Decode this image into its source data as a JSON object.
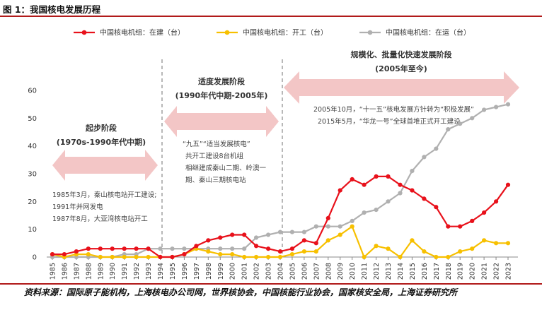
{
  "figure": {
    "title": "图 1：我国核电发展历程",
    "source": "资料来源：国际原子能机构，上海核电办公司网，世界核协会，中国核能行业协会，国家核安全局，上海证券研究所"
  },
  "stages": [
    {
      "name": "起步阶段",
      "period": "(1970s-1990年代中期)"
    },
    {
      "name": "适度发展阶段",
      "period": "(1990年代中期-2005年)"
    },
    {
      "name": "规模化、批量化快速发展阶段",
      "period": "(2005年至今)"
    }
  ],
  "annotations": {
    "stage1": [
      "1985年3月，秦山核电站开工建设;",
      "1991年并网发电",
      "1987年8月，大亚湾核电站开工"
    ],
    "stage2": [
      "“九五”“适当发展核电”",
      "共开工建设8台机组",
      "相继建成秦山二期、岭澳一",
      "期、秦山三期核电站"
    ],
    "stage3": [
      "2005年10月，“十一五”核电发展方针转为“积极发展”",
      "2015年5月，“华龙一号”全球首堆正式开工建设"
    ]
  },
  "chart_data": {
    "type": "line",
    "title": "",
    "xlabel": "",
    "ylabel": "",
    "ylim": [
      0,
      60
    ],
    "yticks": [
      0,
      10,
      20,
      30,
      40,
      50,
      60
    ],
    "x": [
      "1985",
      "1986",
      "1987",
      "1988",
      "1989",
      "1990",
      "1991",
      "1992",
      "1993",
      "1994",
      "1995",
      "1996",
      "1997",
      "1998",
      "1999",
      "2000",
      "2001",
      "2002",
      "2003",
      "2004",
      "2005",
      "2006",
      "2007",
      "2008",
      "2009",
      "2010",
      "2011",
      "2012",
      "2013",
      "2014",
      "2015",
      "2016",
      "2017",
      "2018",
      "2019",
      "2020",
      "2021",
      "2022",
      "2023"
    ],
    "legend_position": "top",
    "grid": false,
    "series": [
      {
        "name": "中国核电机组：在建（台）",
        "color": "#e8111b",
        "values": [
          1,
          1,
          2,
          3,
          3,
          3,
          3,
          3,
          3,
          0,
          0,
          1,
          4,
          6,
          7,
          8,
          8,
          4,
          3,
          2,
          3,
          6,
          5,
          14,
          24,
          28,
          26,
          29,
          29,
          26,
          24,
          21,
          18,
          11,
          11,
          13,
          16,
          20,
          26
        ]
      },
      {
        "name": "中国核电机组：开工（台）",
        "color": "#f7c000",
        "values": [
          1,
          0,
          1,
          1,
          0,
          0,
          0,
          0,
          0,
          0,
          0,
          1,
          3,
          2,
          1,
          1,
          0,
          0,
          0,
          0,
          1,
          2,
          2,
          6,
          8,
          11,
          0,
          4,
          3,
          0,
          6,
          2,
          0,
          0,
          2,
          3,
          6,
          5,
          5
        ]
      },
      {
        "name": "中国核电机组：在运（台）",
        "color": "#b0b0b0",
        "values": [
          0,
          0,
          0,
          0,
          0,
          0,
          1,
          1,
          3,
          3,
          3,
          3,
          3,
          3,
          3,
          3,
          3,
          7,
          8,
          9,
          9,
          9,
          11,
          11,
          11,
          13,
          16,
          17,
          20,
          23,
          31,
          36,
          39,
          46,
          48,
          50,
          53,
          54,
          55
        ]
      }
    ]
  }
}
